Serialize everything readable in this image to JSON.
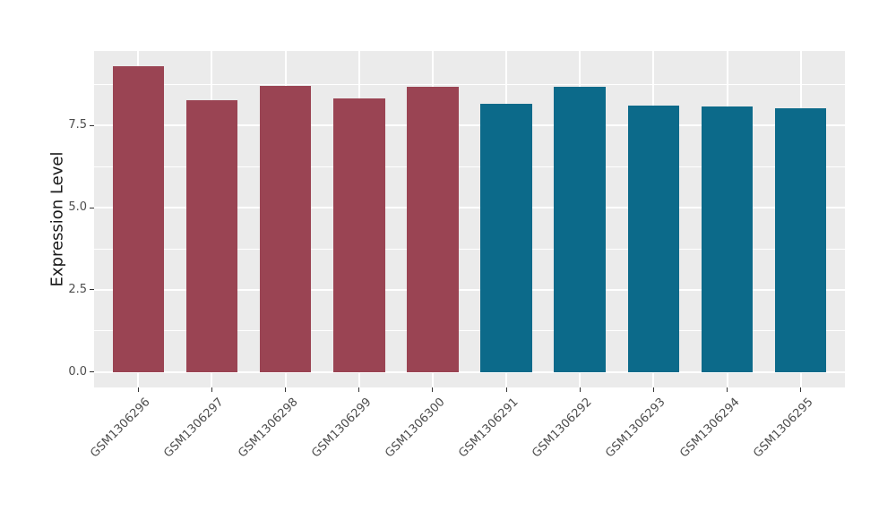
{
  "figure": {
    "background": "#ffffff",
    "panel_background": "#ebebeb",
    "grid_color": "#ffffff",
    "tick_mark_color": "#333333",
    "tick_label_color": "#4d4d4d",
    "axis_title_color": "#1a1a1a",
    "palette": {
      "group_red": "#9a4453",
      "group_blue": "#0c6a8a"
    }
  },
  "chart_data": {
    "type": "bar",
    "title": "",
    "xlabel": "",
    "ylabel": "Expression Level",
    "categories": [
      "GSM1306296",
      "GSM1306297",
      "GSM1306298",
      "GSM1306299",
      "GSM1306300",
      "GSM1306291",
      "GSM1306292",
      "GSM1306293",
      "GSM1306294",
      "GSM1306295"
    ],
    "values": [
      9.31,
      8.27,
      8.7,
      8.33,
      8.68,
      8.17,
      8.68,
      8.1,
      8.08,
      8.04
    ],
    "bar_colors": [
      "#9a4453",
      "#9a4453",
      "#9a4453",
      "#9a4453",
      "#9a4453",
      "#0c6a8a",
      "#0c6a8a",
      "#0c6a8a",
      "#0c6a8a",
      "#0c6a8a"
    ],
    "yticks": [
      0.0,
      2.5,
      5.0,
      7.5
    ],
    "ytick_labels": [
      "0.0",
      "2.5",
      "5.0",
      "7.5"
    ],
    "yticks_minor": [
      1.25,
      3.75,
      6.25,
      8.75
    ],
    "ylim": [
      -0.45,
      9.77
    ],
    "grid": true,
    "legend": false,
    "x_label_angle_deg": 45
  }
}
